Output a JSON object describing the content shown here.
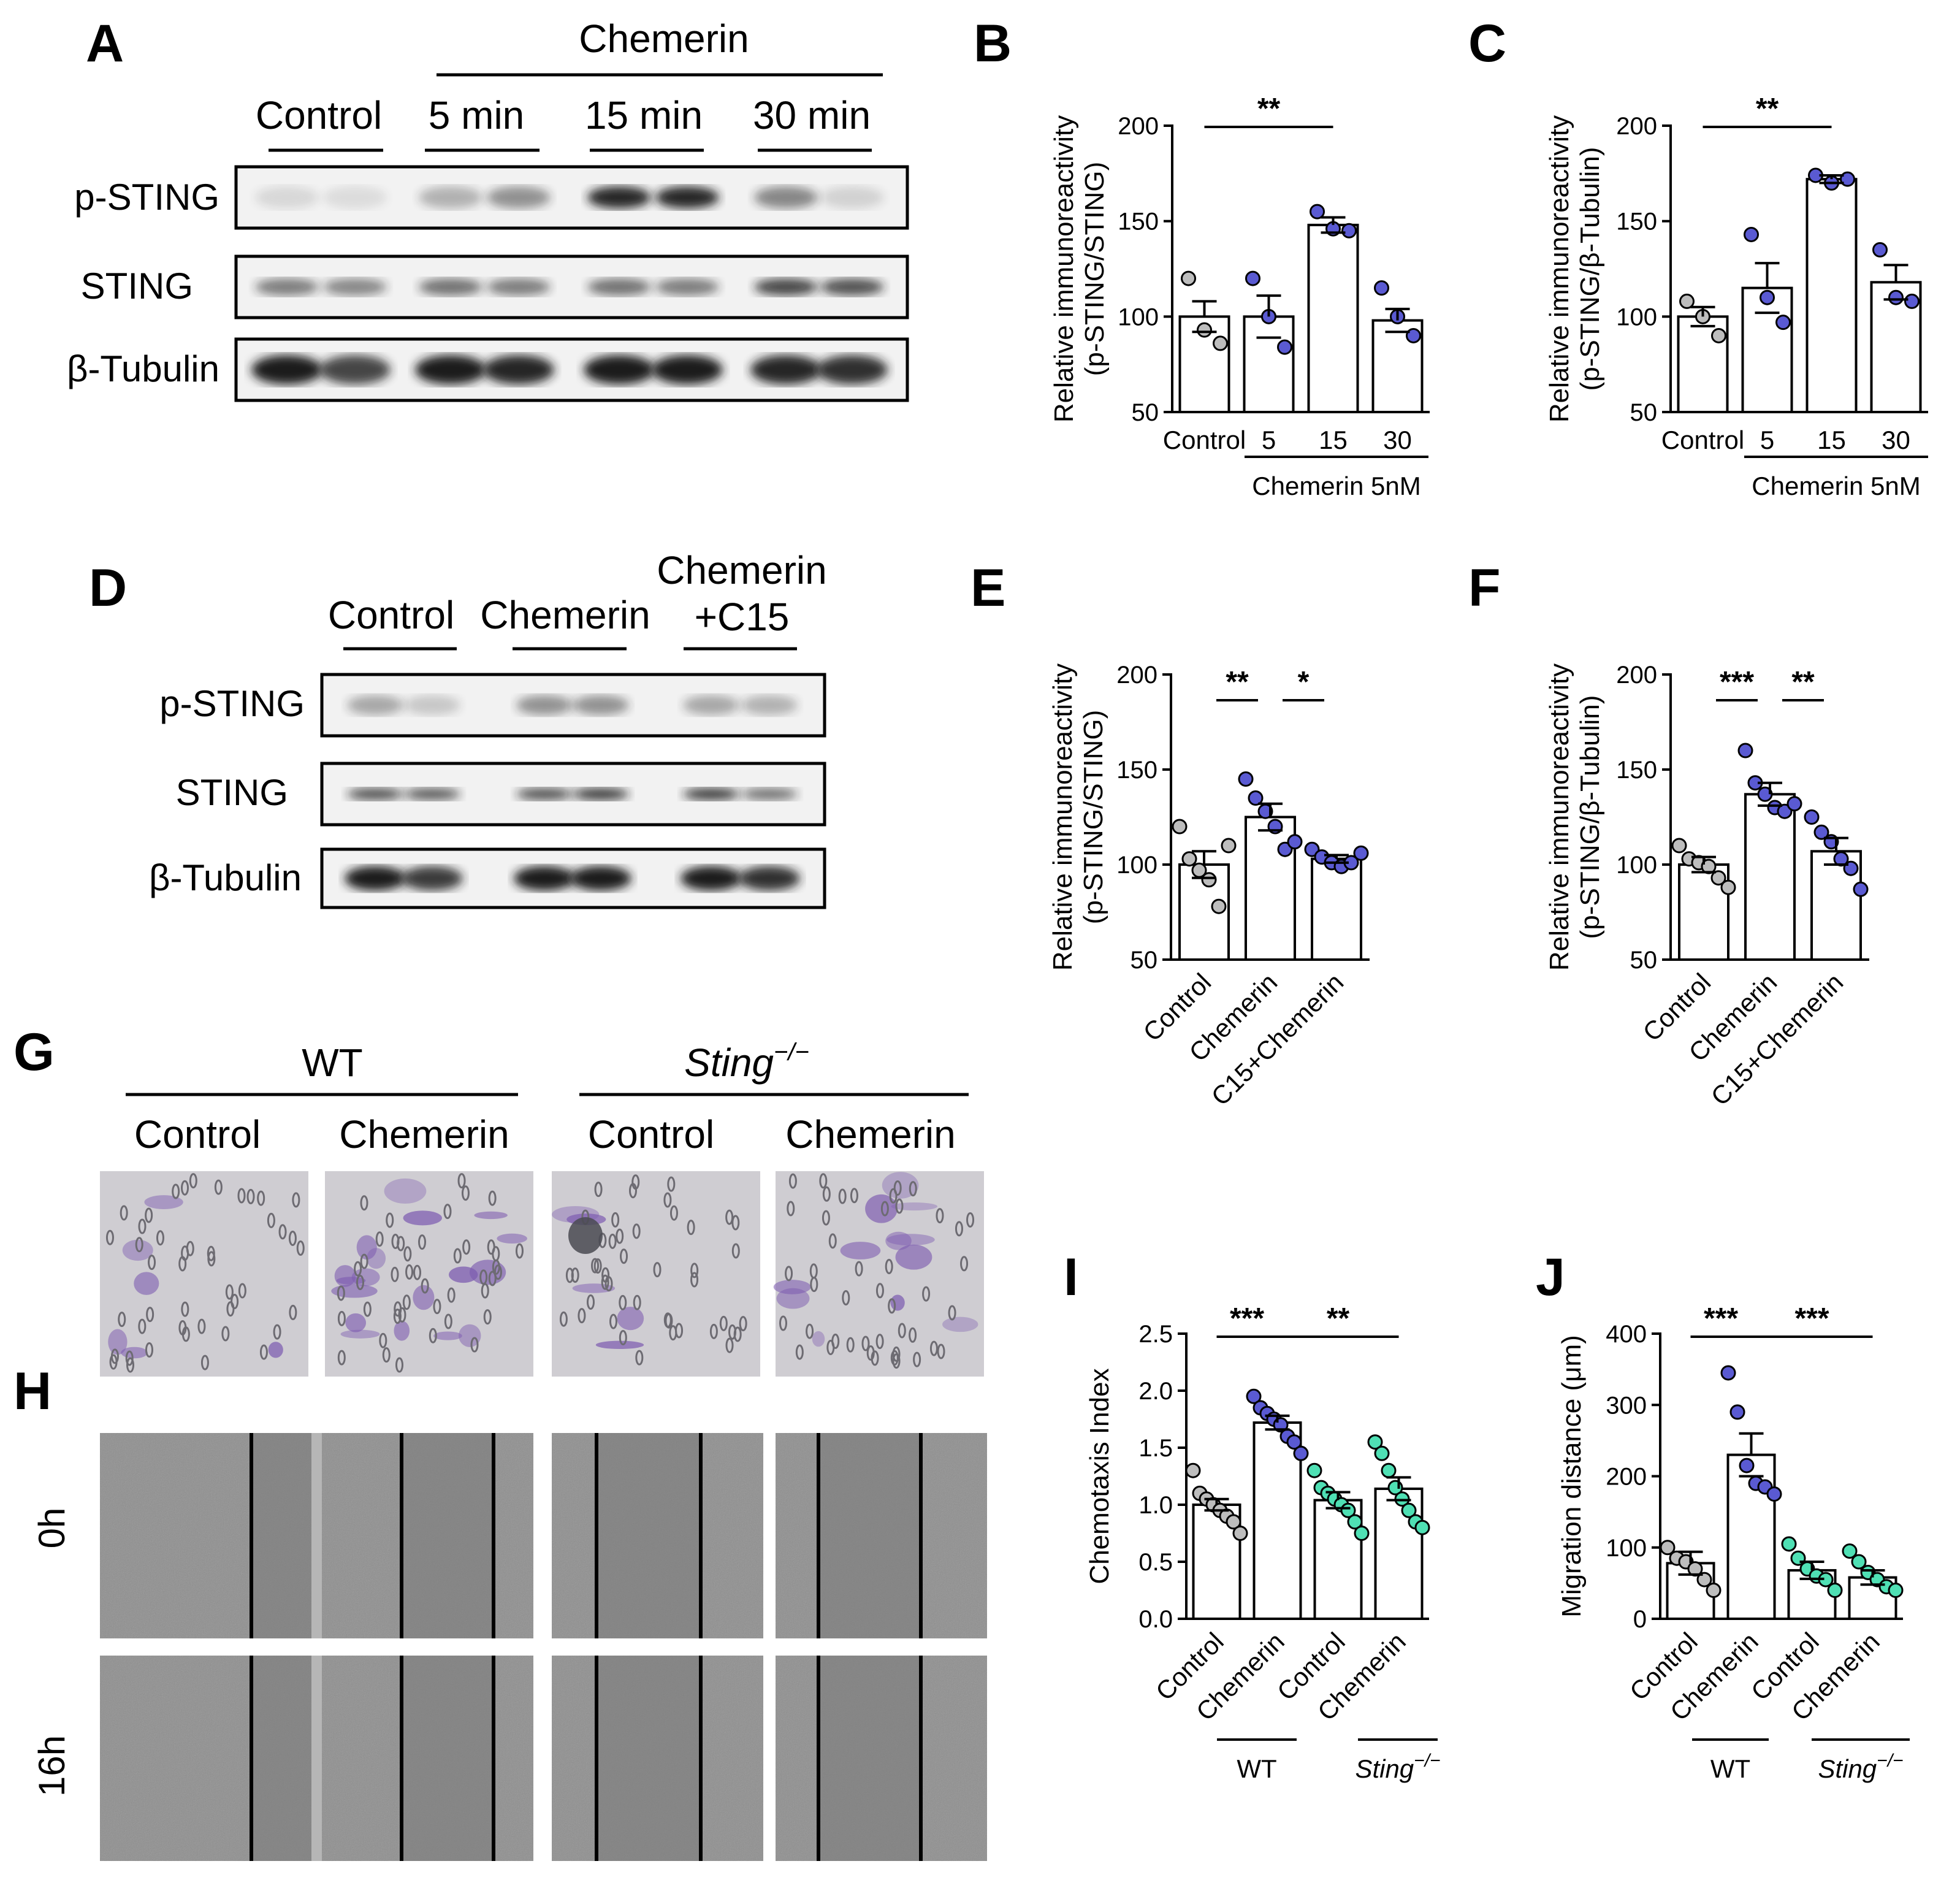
{
  "panel_labels": {
    "A": "A",
    "B": "B",
    "C": "C",
    "D": "D",
    "E": "E",
    "F": "F",
    "G": "G",
    "H": "H",
    "I": "I",
    "J": "J"
  },
  "panel_a": {
    "group_header": "Chemerin",
    "lanes": [
      "Control",
      "5 min",
      "15 min",
      "30 min"
    ],
    "rows": [
      "p-STING",
      "STING",
      "β-Tubulin"
    ]
  },
  "panel_d": {
    "lanes": [
      "Control",
      "Chemerin",
      "Chemerin",
      "+C15"
    ],
    "rows": [
      "p-STING",
      "STING",
      "β-Tubulin"
    ]
  },
  "panel_g": {
    "groups": [
      "WT",
      "Sting",
      "−/−"
    ],
    "columns": [
      "Control",
      "Chemerin",
      "Control",
      "Chemerin"
    ]
  },
  "panel_h": {
    "rows": [
      "0h",
      "16h"
    ]
  },
  "colors": {
    "control": "#bdbdbd",
    "chemerin": "#5a5ad2",
    "sting_ko": "#4fe0b4",
    "blot_bg": "#f2f2f2",
    "band": "#1c1c1c"
  },
  "chart_data": [
    {
      "panel": "B",
      "type": "bar",
      "categories": [
        "Control",
        "5",
        "15",
        "30"
      ],
      "group_label": "Chemerin 5nM",
      "ylabel": [
        "Relative immunoreactivity",
        "(p-STING/STING)"
      ],
      "ylim": [
        50,
        200
      ],
      "yticks": [
        "50",
        "100",
        "150",
        "200"
      ],
      "values": [
        100,
        100,
        148,
        98
      ],
      "sem": [
        8,
        11,
        4,
        6
      ],
      "points": [
        [
          120,
          93,
          86
        ],
        [
          120,
          100,
          84
        ],
        [
          155,
          146,
          145
        ],
        [
          115,
          100,
          90
        ]
      ],
      "significance": [
        {
          "between": [
            0,
            2
          ],
          "label": "**"
        }
      ]
    },
    {
      "panel": "C",
      "type": "bar",
      "categories": [
        "Control",
        "5",
        "15",
        "30"
      ],
      "group_label": "Chemerin 5nM",
      "ylabel": [
        "Relative immunoreactivity",
        "(p-STING/β-Tubulin)"
      ],
      "ylim": [
        50,
        200
      ],
      "yticks": [
        "50",
        "100",
        "150",
        "200"
      ],
      "values": [
        100,
        115,
        172,
        118
      ],
      "sem": [
        5,
        13,
        2,
        9
      ],
      "points": [
        [
          108,
          100,
          90
        ],
        [
          143,
          110,
          97
        ],
        [
          174,
          170,
          172
        ],
        [
          135,
          110,
          108
        ]
      ],
      "significance": [
        {
          "between": [
            0,
            2
          ],
          "label": "**"
        }
      ]
    },
    {
      "panel": "E",
      "type": "bar",
      "categories": [
        "Control",
        "Chemerin",
        "C15+Chemerin"
      ],
      "ylabel": [
        "Relative immunoreactivity",
        "(p-STING/STING)"
      ],
      "ylim": [
        50,
        200
      ],
      "yticks": [
        "50",
        "100",
        "150",
        "200"
      ],
      "values": [
        100,
        125,
        103
      ],
      "sem": [
        7,
        7,
        2
      ],
      "points": [
        [
          120,
          103,
          97,
          92,
          78,
          110
        ],
        [
          145,
          135,
          128,
          120,
          108,
          112
        ],
        [
          108,
          104,
          101,
          99,
          101,
          106
        ]
      ],
      "significance": [
        {
          "between": [
            0,
            1
          ],
          "label": "**"
        },
        {
          "between": [
            1,
            2
          ],
          "label": "*"
        }
      ]
    },
    {
      "panel": "F",
      "type": "bar",
      "categories": [
        "Control",
        "Chemerin",
        "C15+Chemerin"
      ],
      "ylabel": [
        "Relative immunoreactivity",
        "(p-STING/β-Tubulin)"
      ],
      "ylim": [
        50,
        200
      ],
      "yticks": [
        "50",
        "100",
        "150",
        "200"
      ],
      "values": [
        100,
        137,
        107
      ],
      "sem": [
        4,
        6,
        7
      ],
      "points": [
        [
          110,
          103,
          101,
          99,
          93,
          88
        ],
        [
          160,
          143,
          137,
          130,
          128,
          132
        ],
        [
          125,
          117,
          112,
          103,
          98,
          87
        ]
      ],
      "significance": [
        {
          "between": [
            0,
            1
          ],
          "label": "***"
        },
        {
          "between": [
            1,
            2
          ],
          "label": "**"
        }
      ]
    },
    {
      "panel": "I",
      "type": "bar",
      "categories": [
        "Control",
        "Chemerin",
        "Control",
        "Chemerin"
      ],
      "groups": [
        "WT",
        "Sting",
        "−/−"
      ],
      "ylabel": [
        "Chemotaxis Index"
      ],
      "ylim": [
        0,
        2.5
      ],
      "yticks": [
        "0.0",
        "0.5",
        "1.0",
        "1.5",
        "2.0",
        "2.5"
      ],
      "values": [
        1.0,
        1.72,
        1.04,
        1.14
      ],
      "sem": [
        0.05,
        0.06,
        0.07,
        0.1
      ],
      "points": [
        [
          1.3,
          1.1,
          1.05,
          1.0,
          0.95,
          0.9,
          0.85,
          0.75
        ],
        [
          1.95,
          1.85,
          1.8,
          1.75,
          1.7,
          1.6,
          1.55,
          1.45
        ],
        [
          1.3,
          1.15,
          1.1,
          1.05,
          1.0,
          0.95,
          0.85,
          0.75
        ],
        [
          1.55,
          1.45,
          1.3,
          1.15,
          1.05,
          0.95,
          0.85,
          0.8
        ]
      ],
      "significance": [
        {
          "between": [
            0,
            1
          ],
          "label": "***"
        },
        {
          "between": [
            1,
            3
          ],
          "label": "**"
        }
      ]
    },
    {
      "panel": "J",
      "type": "bar",
      "categories": [
        "Control",
        "Chemerin",
        "Control",
        "Chemerin"
      ],
      "groups": [
        "WT",
        "Sting",
        "−/−"
      ],
      "ylabel": [
        "Migration distance (μm)"
      ],
      "ylim": [
        0,
        400
      ],
      "yticks": [
        "0",
        "100",
        "200",
        "300",
        "400"
      ],
      "values": [
        78,
        230,
        68,
        58
      ],
      "sem": [
        16,
        30,
        12,
        10
      ],
      "points": [
        [
          100,
          85,
          80,
          70,
          55,
          40
        ],
        [
          345,
          290,
          215,
          190,
          185,
          175
        ],
        [
          105,
          85,
          70,
          60,
          55,
          40
        ],
        [
          95,
          80,
          65,
          55,
          45,
          40
        ]
      ],
      "significance": [
        {
          "between": [
            0,
            1
          ],
          "label": "***"
        },
        {
          "between": [
            1,
            3
          ],
          "label": "***"
        }
      ]
    }
  ]
}
